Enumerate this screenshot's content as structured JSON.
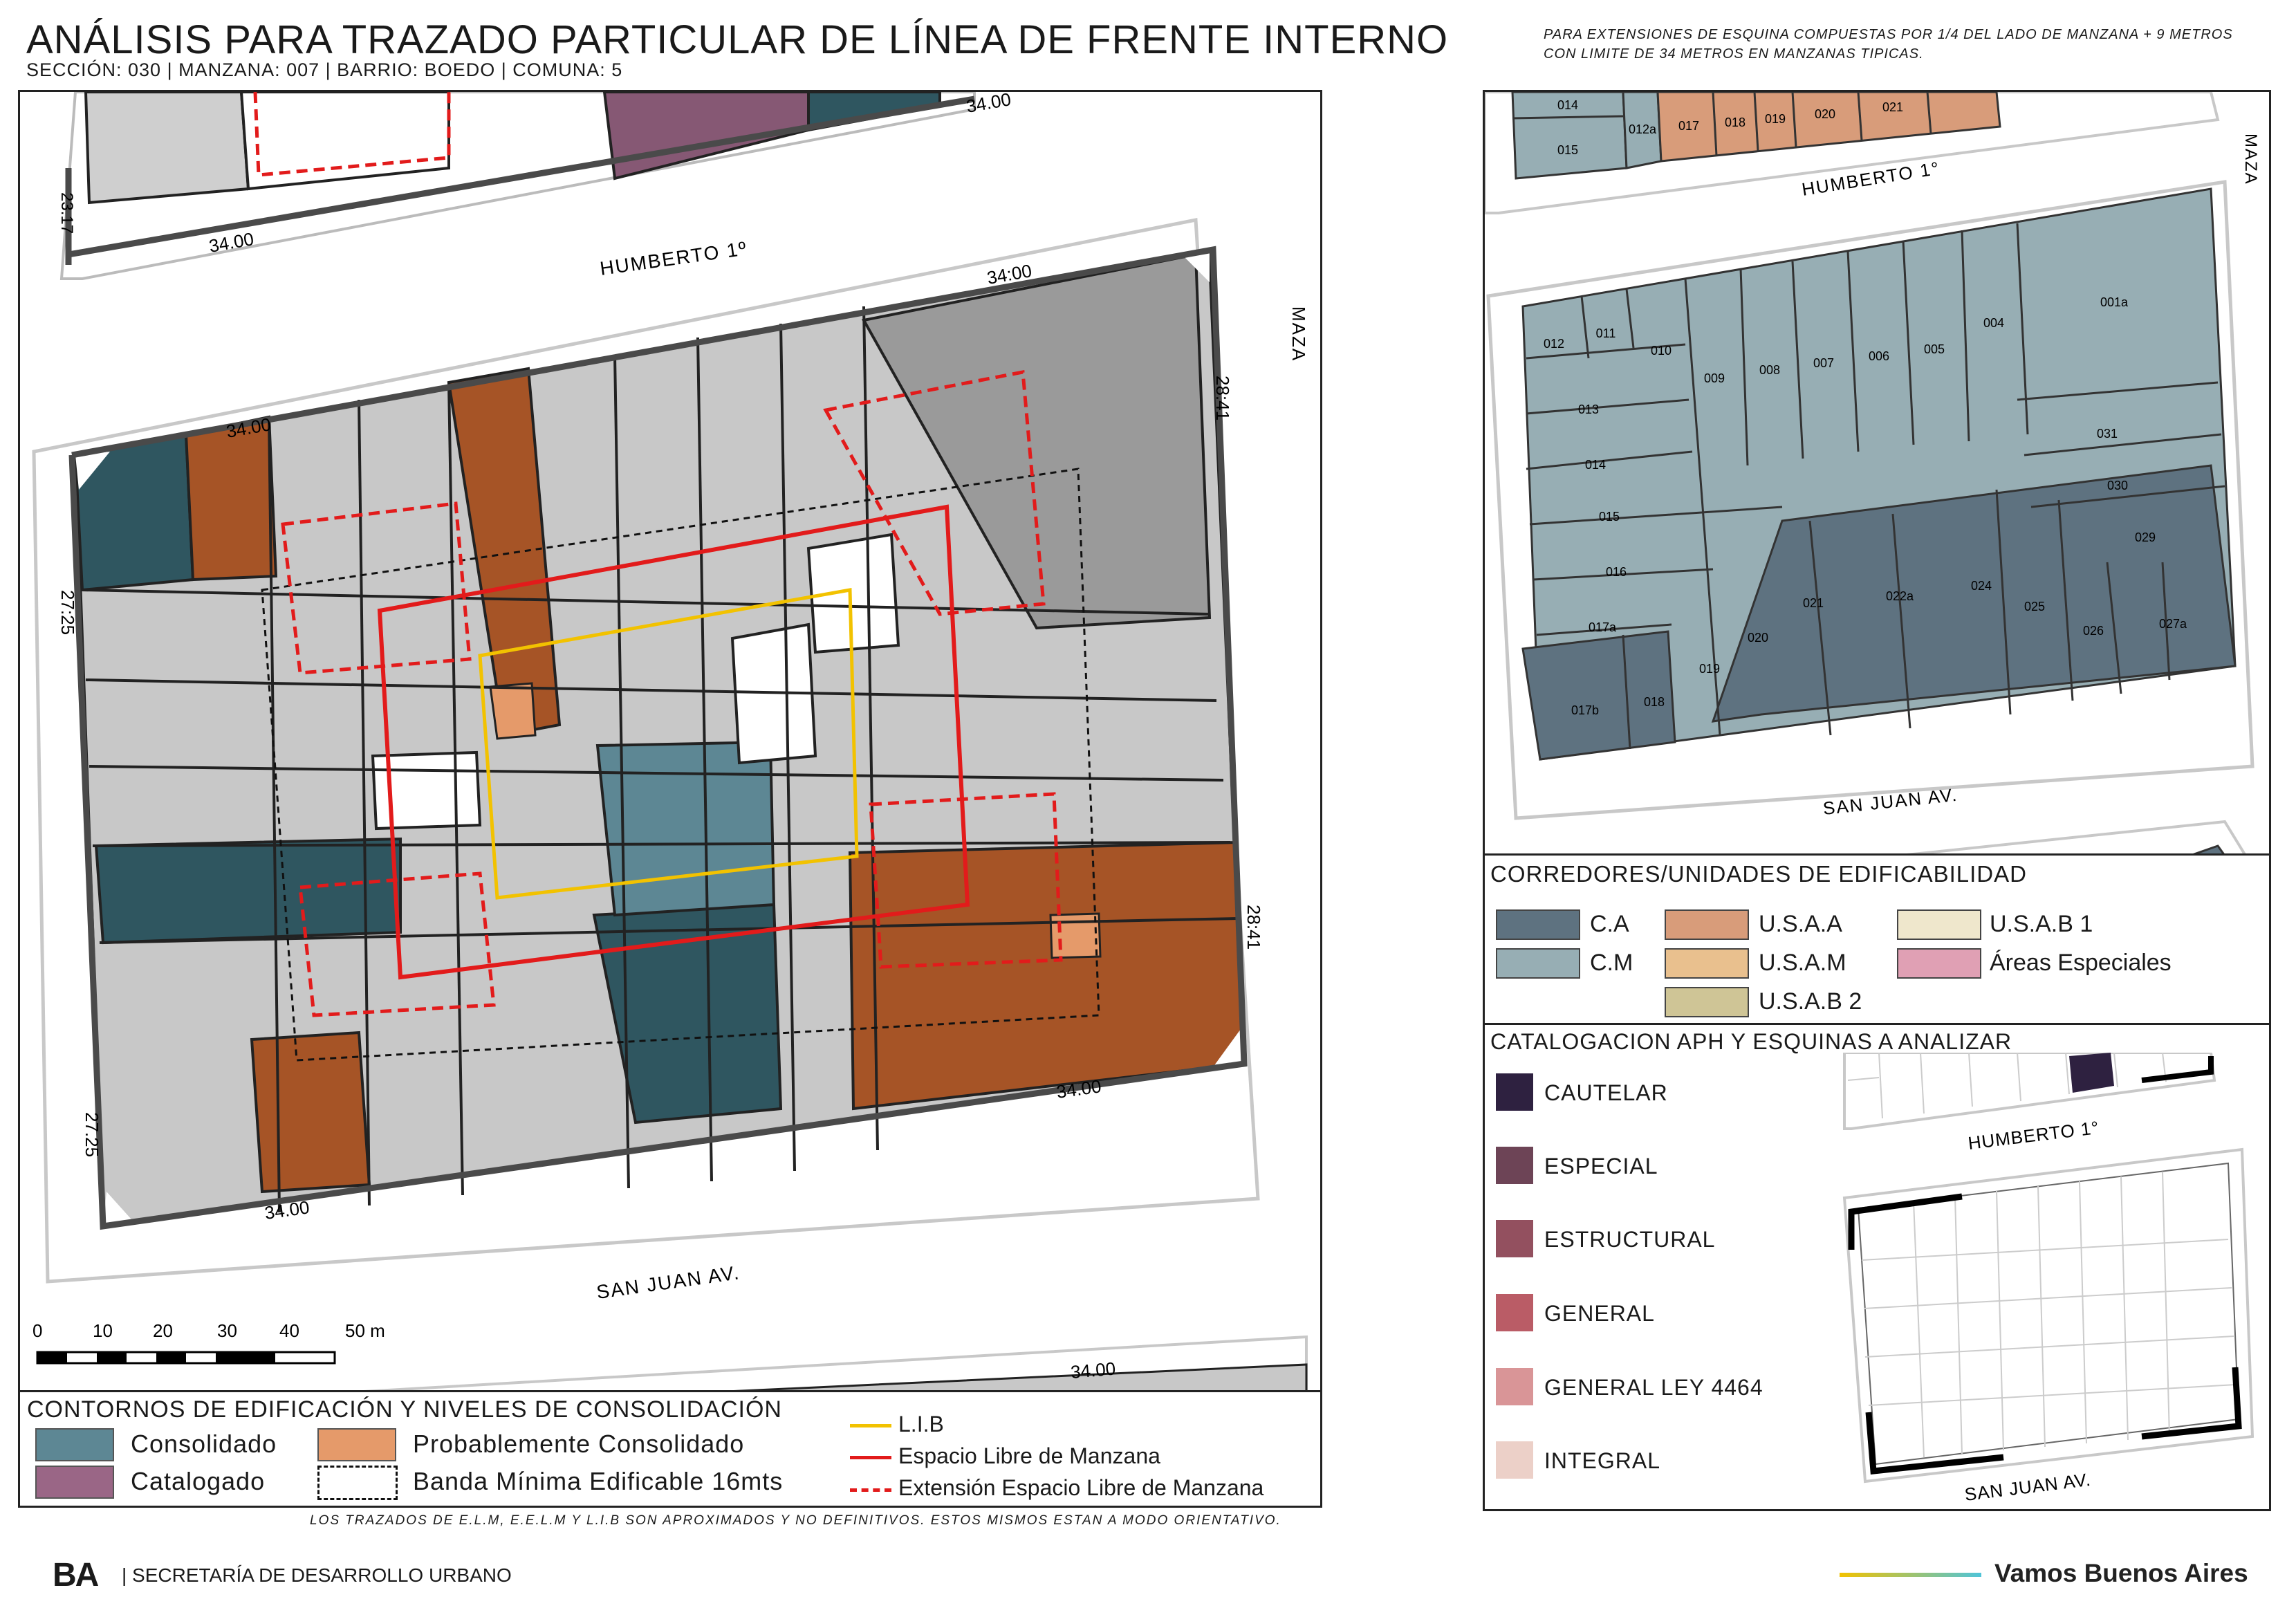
{
  "header": {
    "title": "ANÁLISIS PARA TRAZADO PARTICULAR DE LÍNEA DE FRENTE INTERNO",
    "subtitle": "SECCIÓN: 030 |  MANZANA: 007 | BARRIO: BOEDO | COMUNA: 5",
    "note": "PARA EXTENSIONES DE ESQUINA COMPUESTAS POR 1/4 DEL LADO DE MANZANA + 9 METROS CON LIMITE DE 34 METROS EN MANZANAS TIPICAS."
  },
  "main_map": {
    "streets": {
      "north": "HUMBERTO 1º",
      "south": "SAN JUAN AV.",
      "east": "MAZA"
    },
    "dimensions": {
      "top_prev_block": "34.00",
      "prev_block_side": "23.17",
      "prev_block_bottom": "34.00",
      "north": "34.00",
      "north_right": "34:00",
      "east_top": "28:41",
      "west_top": "27:25",
      "east_bottom": "28:41",
      "west_bottom": "27.25",
      "south_right": "34.00",
      "south_left": "34.00",
      "next_block_top": "34.00"
    },
    "scale": {
      "labels": [
        "0",
        "10",
        "20",
        "30",
        "40",
        "50 m"
      ]
    }
  },
  "right_map": {
    "streets": {
      "north": "HUMBERTO 1°",
      "south": "SAN JUAN AV.",
      "east": "MAZA"
    },
    "top_parcels": [
      "014",
      "015",
      "012a",
      "017",
      "018",
      "019",
      "020",
      "021"
    ],
    "parcels": [
      "012",
      "011",
      "010",
      "009",
      "008",
      "007",
      "006",
      "005",
      "004",
      "001a",
      "013",
      "014",
      "031",
      "015",
      "030",
      "016",
      "029",
      "017a",
      "021",
      "022a",
      "024",
      "025",
      "026",
      "027a",
      "020",
      "019",
      "017b",
      "018"
    ]
  },
  "legend_main": {
    "title": "CONTORNOS DE EDIFICACIÓN Y NIVELES DE CONSOLIDACIÓN",
    "items": [
      {
        "label": "Consolidado",
        "color": "#5d8794"
      },
      {
        "label": "Probablemente Consolidado",
        "color": "#e59a6a"
      },
      {
        "label": "Catalogado",
        "color": "#9a6686"
      },
      {
        "label": "Banda Mínima Edificable 16mts",
        "color": "#ffffff"
      }
    ],
    "lines": [
      {
        "label": "L.I.B",
        "color": "#f2c200"
      },
      {
        "label": "Espacio Libre de Manzana",
        "color": "#e21b1b"
      },
      {
        "label": "Extensión Espacio Libre de Manzana",
        "color": "#e21b1b"
      }
    ]
  },
  "legend_corredores": {
    "title": "CORREDORES/UNIDADES DE EDIFICABILIDAD",
    "items": [
      {
        "label": "C.A",
        "color": "#5e7280"
      },
      {
        "label": "U.S.A.A",
        "color": "#d89c7a"
      },
      {
        "label": "U.S.A.B 1",
        "color": "#efe7cc"
      },
      {
        "label": "C.M",
        "color": "#97aeb4"
      },
      {
        "label": "U.S.A.M",
        "color": "#e9c08e"
      },
      {
        "label": "Áreas Especiales",
        "color": "#e0a0b4"
      },
      {
        "label": "U.S.A.B 2",
        "color": "#cfc596"
      }
    ]
  },
  "legend_catalogacion": {
    "title": "CATALOGACION APH Y ESQUINAS A ANALIZAR",
    "items": [
      {
        "label": "CAUTELAR",
        "color": "#2e2140"
      },
      {
        "label": "ESPECIAL",
        "color": "#6d4456"
      },
      {
        "label": "ESTRUCTURAL",
        "color": "#93505f"
      },
      {
        "label": "GENERAL",
        "color": "#ba5c66"
      },
      {
        "label": "GENERAL LEY 4464",
        "color": "#d99597"
      },
      {
        "label": "INTEGRAL",
        "color": "#ecd0c8"
      }
    ],
    "inset_streets": {
      "north": "HUMBERTO 1°",
      "south": "SAN JUAN AV."
    }
  },
  "footer": {
    "disclaimer": "LOS TRAZADOS DE E.L.M, E.E.L.M Y L.I.B SON APROXIMADOS Y NO DEFINITIVOS. ESTOS MISMOS ESTAN A MODO ORIENTATIVO.",
    "org_mark": "BA",
    "org_text": "| SECRETARÍA DE DESARROLLO URBANO",
    "slogan": "Vamos Buenos Aires"
  }
}
